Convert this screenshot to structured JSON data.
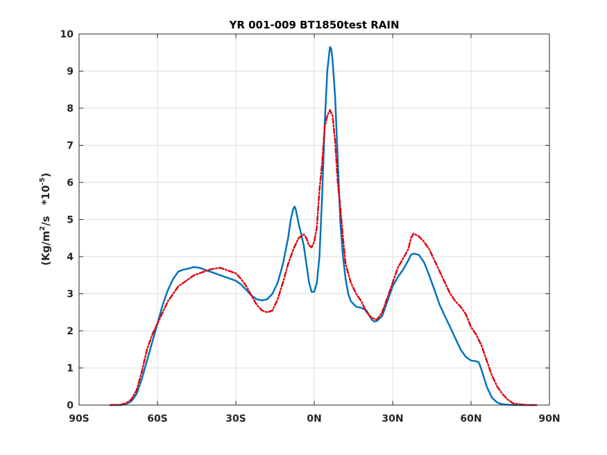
{
  "chart_data": {
    "type": "line",
    "title": "YR 001-009 BT1850test RAIN",
    "ylabel_parts": {
      "open": "(Kg/m",
      "exp1": "2",
      "mid": "/s   *10",
      "exp2": "-5",
      "close": ")"
    },
    "xlim": [
      -90,
      90
    ],
    "ylim": [
      0,
      10
    ],
    "x_ticks": [
      {
        "value": -90,
        "label": "90S"
      },
      {
        "value": -60,
        "label": "60S"
      },
      {
        "value": -30,
        "label": "30S"
      },
      {
        "value": 0,
        "label": "0N"
      },
      {
        "value": 30,
        "label": "30N"
      },
      {
        "value": 60,
        "label": "60N"
      },
      {
        "value": 90,
        "label": "90N"
      }
    ],
    "y_ticks": [
      0,
      1,
      2,
      3,
      4,
      5,
      6,
      7,
      8,
      9,
      10
    ],
    "grid": true,
    "series": [
      {
        "color": "#0072bd",
        "style": "solid",
        "points": [
          [
            -78,
            0.0
          ],
          [
            -74,
            0.0
          ],
          [
            -72,
            0.03
          ],
          [
            -70,
            0.1
          ],
          [
            -68,
            0.3
          ],
          [
            -66,
            0.7
          ],
          [
            -64,
            1.2
          ],
          [
            -62,
            1.7
          ],
          [
            -60,
            2.2
          ],
          [
            -58,
            2.7
          ],
          [
            -56,
            3.1
          ],
          [
            -54,
            3.4
          ],
          [
            -52,
            3.6
          ],
          [
            -50,
            3.65
          ],
          [
            -48,
            3.68
          ],
          [
            -46,
            3.72
          ],
          [
            -44,
            3.7
          ],
          [
            -42,
            3.65
          ],
          [
            -40,
            3.6
          ],
          [
            -38,
            3.55
          ],
          [
            -36,
            3.5
          ],
          [
            -34,
            3.45
          ],
          [
            -32,
            3.4
          ],
          [
            -30,
            3.35
          ],
          [
            -28,
            3.25
          ],
          [
            -26,
            3.1
          ],
          [
            -24,
            2.95
          ],
          [
            -22,
            2.85
          ],
          [
            -20,
            2.82
          ],
          [
            -18,
            2.85
          ],
          [
            -16,
            3.0
          ],
          [
            -14,
            3.3
          ],
          [
            -12,
            3.8
          ],
          [
            -10,
            4.5
          ],
          [
            -9,
            5.0
          ],
          [
            -8,
            5.3
          ],
          [
            -7.5,
            5.35
          ],
          [
            -7,
            5.25
          ],
          [
            -6,
            4.9
          ],
          [
            -5,
            4.6
          ],
          [
            -4,
            4.3
          ],
          [
            -3,
            3.8
          ],
          [
            -2,
            3.3
          ],
          [
            -1,
            3.05
          ],
          [
            0,
            3.05
          ],
          [
            1,
            3.3
          ],
          [
            2,
            4.0
          ],
          [
            3,
            5.6
          ],
          [
            4,
            7.6
          ],
          [
            5,
            9.0
          ],
          [
            6,
            9.65
          ],
          [
            6.5,
            9.6
          ],
          [
            7,
            9.3
          ],
          [
            8,
            8.3
          ],
          [
            9,
            6.6
          ],
          [
            10,
            4.9
          ],
          [
            11,
            4.0
          ],
          [
            12,
            3.4
          ],
          [
            13,
            3.0
          ],
          [
            14,
            2.8
          ],
          [
            16,
            2.65
          ],
          [
            18,
            2.62
          ],
          [
            20,
            2.55
          ],
          [
            22,
            2.3
          ],
          [
            23,
            2.25
          ],
          [
            24,
            2.27
          ],
          [
            26,
            2.4
          ],
          [
            28,
            2.8
          ],
          [
            30,
            3.2
          ],
          [
            32,
            3.45
          ],
          [
            34,
            3.65
          ],
          [
            36,
            3.9
          ],
          [
            37,
            4.05
          ],
          [
            38,
            4.08
          ],
          [
            40,
            4.05
          ],
          [
            42,
            3.85
          ],
          [
            44,
            3.5
          ],
          [
            46,
            3.1
          ],
          [
            48,
            2.7
          ],
          [
            50,
            2.4
          ],
          [
            52,
            2.1
          ],
          [
            54,
            1.8
          ],
          [
            56,
            1.5
          ],
          [
            58,
            1.3
          ],
          [
            60,
            1.2
          ],
          [
            62,
            1.18
          ],
          [
            63,
            1.15
          ],
          [
            64,
            0.95
          ],
          [
            66,
            0.5
          ],
          [
            68,
            0.2
          ],
          [
            70,
            0.07
          ],
          [
            72,
            0.02
          ],
          [
            76,
            0.0
          ],
          [
            85,
            0.0
          ]
        ]
      },
      {
        "color": "#e0000b",
        "style": "dashdot",
        "points": [
          [
            -78,
            0.0
          ],
          [
            -74,
            0.01
          ],
          [
            -72,
            0.05
          ],
          [
            -70,
            0.15
          ],
          [
            -68,
            0.4
          ],
          [
            -66,
            0.9
          ],
          [
            -64,
            1.5
          ],
          [
            -62,
            1.9
          ],
          [
            -60,
            2.2
          ],
          [
            -58,
            2.5
          ],
          [
            -56,
            2.8
          ],
          [
            -54,
            3.0
          ],
          [
            -52,
            3.2
          ],
          [
            -50,
            3.3
          ],
          [
            -48,
            3.4
          ],
          [
            -46,
            3.5
          ],
          [
            -44,
            3.55
          ],
          [
            -42,
            3.6
          ],
          [
            -40,
            3.65
          ],
          [
            -38,
            3.68
          ],
          [
            -36,
            3.7
          ],
          [
            -34,
            3.65
          ],
          [
            -32,
            3.6
          ],
          [
            -30,
            3.55
          ],
          [
            -28,
            3.4
          ],
          [
            -26,
            3.2
          ],
          [
            -24,
            2.95
          ],
          [
            -22,
            2.7
          ],
          [
            -20,
            2.55
          ],
          [
            -18,
            2.5
          ],
          [
            -16,
            2.55
          ],
          [
            -14,
            2.85
          ],
          [
            -12,
            3.3
          ],
          [
            -10,
            3.8
          ],
          [
            -8,
            4.2
          ],
          [
            -6,
            4.5
          ],
          [
            -4,
            4.6
          ],
          [
            -3,
            4.5
          ],
          [
            -2,
            4.3
          ],
          [
            -1,
            4.25
          ],
          [
            0,
            4.4
          ],
          [
            1,
            4.8
          ],
          [
            2,
            5.8
          ],
          [
            3,
            6.5
          ],
          [
            4,
            7.5
          ],
          [
            5,
            7.8
          ],
          [
            6,
            7.95
          ],
          [
            7,
            7.8
          ],
          [
            8,
            7.1
          ],
          [
            9,
            6.0
          ],
          [
            10,
            5.3
          ],
          [
            11,
            4.5
          ],
          [
            12,
            3.8
          ],
          [
            14,
            3.3
          ],
          [
            16,
            3.0
          ],
          [
            18,
            2.8
          ],
          [
            20,
            2.5
          ],
          [
            22,
            2.35
          ],
          [
            24,
            2.3
          ],
          [
            26,
            2.5
          ],
          [
            28,
            2.9
          ],
          [
            30,
            3.3
          ],
          [
            32,
            3.7
          ],
          [
            34,
            3.95
          ],
          [
            36,
            4.2
          ],
          [
            37,
            4.5
          ],
          [
            38,
            4.62
          ],
          [
            40,
            4.55
          ],
          [
            42,
            4.4
          ],
          [
            44,
            4.2
          ],
          [
            46,
            3.9
          ],
          [
            48,
            3.6
          ],
          [
            50,
            3.3
          ],
          [
            52,
            3.0
          ],
          [
            54,
            2.8
          ],
          [
            56,
            2.65
          ],
          [
            58,
            2.45
          ],
          [
            60,
            2.1
          ],
          [
            62,
            1.9
          ],
          [
            64,
            1.6
          ],
          [
            66,
            1.2
          ],
          [
            68,
            0.8
          ],
          [
            70,
            0.5
          ],
          [
            72,
            0.3
          ],
          [
            74,
            0.15
          ],
          [
            76,
            0.05
          ],
          [
            78,
            0.02
          ],
          [
            82,
            0.0
          ],
          [
            85,
            0.0
          ]
        ]
      }
    ]
  }
}
